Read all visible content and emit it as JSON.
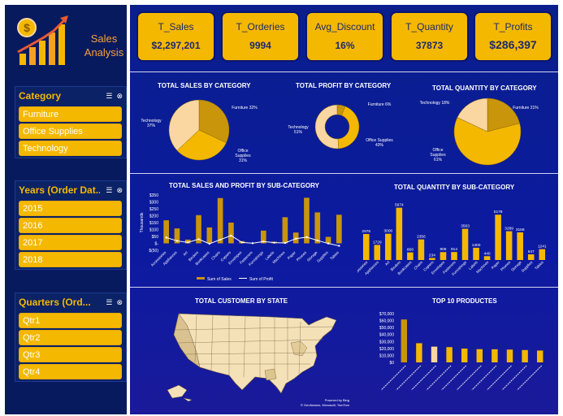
{
  "sidebar": {
    "logo_title": "Sales Analysis",
    "slicers": [
      {
        "title": "Category",
        "items": [
          "Furniture",
          "Office Supplies",
          "Technology"
        ]
      },
      {
        "title": "Years (Order Dat...",
        "items": [
          "2015",
          "2016",
          "2017",
          "2018"
        ]
      },
      {
        "title": "Quarters (Ord...",
        "items": [
          "Qtr1",
          "Qtr2",
          "Qtr3",
          "Qtr4"
        ]
      }
    ]
  },
  "kpis": [
    {
      "label": "T_Sales",
      "value": "$2,297,201"
    },
    {
      "label": "T_Orderies",
      "value": "9994"
    },
    {
      "label": "Avg_Discount",
      "value": "16%"
    },
    {
      "label": "T_Quantity",
      "value": "37873"
    },
    {
      "label": "T_Profits",
      "value": "$286,397"
    }
  ],
  "colors": {
    "accent": "#f5b800",
    "bg": "#0b1a8a",
    "light": "#fad7a0",
    "dark": "#c9950a"
  },
  "pies": {
    "sales": {
      "title": "TOTAL SALES BY CATEGORY",
      "slices": [
        {
          "name": "Furniture",
          "pct": 32
        },
        {
          "name": "Office Supplies",
          "pct": 31
        },
        {
          "name": "Technology",
          "pct": 37
        }
      ],
      "labels": [
        "Furniture 32%",
        "Office Supplies 31%",
        "Technology 37%"
      ]
    },
    "profit": {
      "title": "TOTAL PROFIT BY CATEGORY",
      "slices": [
        {
          "name": "Furniture",
          "pct": 6
        },
        {
          "name": "Office Supplies",
          "pct": 43
        },
        {
          "name": "Technology",
          "pct": 51
        }
      ],
      "labels": [
        "Furniture 6%",
        "Office Supplies 43%",
        "Technology 51%"
      ]
    },
    "quantity": {
      "title": "TOTAL QUANTITY BY CATEGORY",
      "slices": [
        {
          "name": "Furniture",
          "pct": 21
        },
        {
          "name": "Office Supplies",
          "pct": 61
        },
        {
          "name": "Technology",
          "pct": 18
        }
      ],
      "labels": [
        "Furniture 21%",
        "Office Supplies 61%",
        "Technology 18%"
      ]
    }
  },
  "chart_data": [
    {
      "type": "bar",
      "title": "TOTAL SALES AND PROFIT BY SUB-CATEGORY",
      "ylabel": "Thousands",
      "yticks": [
        "$350",
        "$300",
        "$250",
        "$200",
        "$150",
        "$100",
        "$50",
        "$-",
        "$(50)"
      ],
      "ylim": [
        -50,
        350
      ],
      "categories": [
        "Accessories",
        "Appliances",
        "Art",
        "Binders",
        "Bookcases",
        "Chairs",
        "Copiers",
        "Envelopes",
        "Fasteners",
        "Furnishings",
        "Labels",
        "Machines",
        "Paper",
        "Phones",
        "Storage",
        "Supplies",
        "Tables"
      ],
      "series": [
        {
          "name": "Sum of Sales",
          "values": [
            167,
            108,
            27,
            204,
            115,
            328,
            150,
            16,
            3,
            92,
            12,
            189,
            78,
            330,
            224,
            47,
            207
          ]
        },
        {
          "name": "Sum of Profit",
          "values": [
            42,
            18,
            7,
            30,
            -3,
            27,
            56,
            7,
            1,
            13,
            5,
            3,
            34,
            45,
            21,
            -1,
            -18
          ]
        }
      ]
    },
    {
      "type": "bar",
      "title": "TOTAL QUANTITY BY SUB-CATEGORY",
      "categories": [
        "Accessories",
        "Appliances",
        "Art",
        "Binders",
        "Bookcases",
        "Chairs",
        "Copiers",
        "Envelopes",
        "Fasteners",
        "Furnishings",
        "Labels",
        "Machines",
        "Paper",
        "Phones",
        "Storage",
        "Supplies",
        "Tables"
      ],
      "values": [
        2976,
        1729,
        3000,
        5974,
        868,
        2356,
        234,
        906,
        914,
        3563,
        1400,
        440,
        5178,
        3289,
        3158,
        647,
        1241
      ],
      "labels": [
        "2976",
        "1729",
        "3000",
        "5974",
        "868",
        "2356",
        "234",
        "906",
        "914",
        "3563",
        "1400",
        "440",
        "5178",
        "3289",
        "3158",
        "647",
        "1241"
      ]
    },
    {
      "type": "bar",
      "title": "TOP 10 PRODUCTES",
      "yticks": [
        "$70,000",
        "$60,000",
        "$50,000",
        "$40,000",
        "$30,000",
        "$20,000",
        "$10,000",
        "$0"
      ],
      "ylim": [
        0,
        70000
      ],
      "values": [
        61600,
        27500,
        22600,
        21900,
        19800,
        19000,
        18800,
        18400,
        17700,
        17000
      ]
    }
  ],
  "map": {
    "title": "TOTAL CUSTOMER BY STATE",
    "credit1": "Powered by Bing",
    "credit2": "© GeoNames, Microsoft, TomTom"
  },
  "legend": {
    "sales": "Sum of Sales",
    "profit": "Sum of Profit"
  }
}
